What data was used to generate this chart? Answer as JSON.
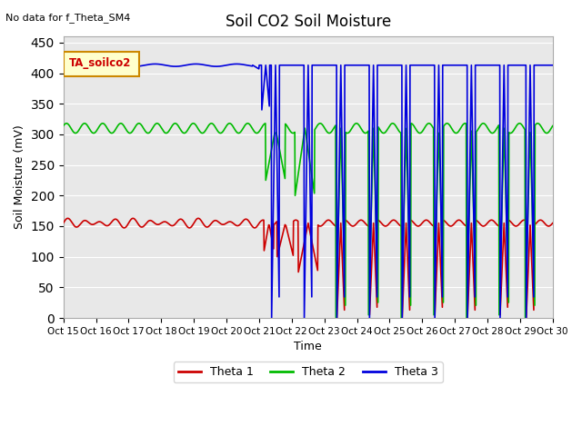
{
  "title": "Soil CO2 Soil Moisture",
  "ylabel": "Soil Moisture (mV)",
  "xlabel": "Time",
  "annotation_top_left": "No data for f_Theta_SM4",
  "legend_box_label": "TA_soilco2",
  "ylim": [
    0,
    460
  ],
  "yticks": [
    0,
    50,
    100,
    150,
    200,
    250,
    300,
    350,
    400,
    450
  ],
  "xtick_labels": [
    "Oct 15",
    "Oct 16",
    "Oct 17",
    "Oct 18",
    "Oct 19",
    "Oct 20",
    "Oct 21",
    "Oct 22",
    "Oct 23",
    "Oct 24",
    "Oct 25",
    "Oct 26",
    "Oct 27",
    "Oct 28",
    "Oct 29",
    "Oct 30"
  ],
  "bg_color": "#e8e8e8",
  "line_colors": {
    "theta1": "#cc0000",
    "theta2": "#00bb00",
    "theta3": "#0000dd"
  },
  "legend_labels": [
    "Theta 1",
    "Theta 2",
    "Theta 3"
  ],
  "legend_box_bg": "#ffffcc",
  "legend_box_border": "#cc8800"
}
